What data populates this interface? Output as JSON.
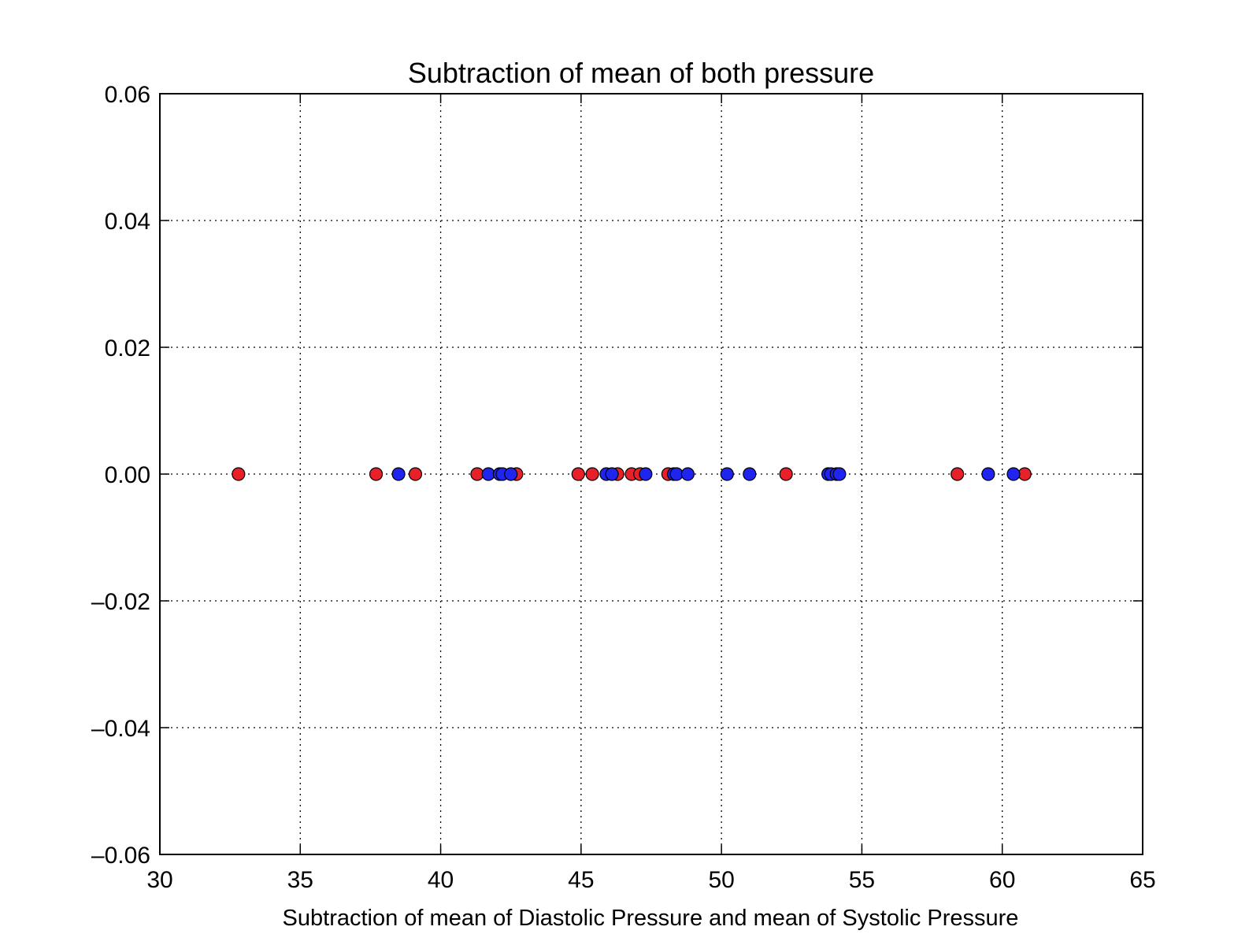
{
  "chart_data": {
    "type": "scatter",
    "title": "Subtraction of mean of both pressure",
    "xlabel": "Subtraction of mean of Diastolic Pressure and mean of Systolic Pressure",
    "ylabel": "",
    "xlim": [
      30,
      65
    ],
    "ylim": [
      -0.06,
      0.06
    ],
    "xticks": [
      30,
      35,
      40,
      45,
      50,
      55,
      60,
      65
    ],
    "xtick_labels": [
      "30",
      "35",
      "40",
      "45",
      "50",
      "55",
      "60",
      "65"
    ],
    "yticks": [
      0.06,
      0.04,
      0.02,
      0.0,
      -0.02,
      -0.04,
      -0.06
    ],
    "ytick_labels": [
      "0.06",
      "0.04",
      "0.02",
      "0.00",
      "–0.02",
      "–0.04",
      "–0.06"
    ],
    "grid": true,
    "legend": "none",
    "series": [
      {
        "color": "#e8202a",
        "x": [
          32.8,
          37.7,
          39.1,
          41.3,
          42.7,
          44.9,
          45.4,
          46.3,
          46.8,
          47.1,
          48.1,
          52.3,
          58.4,
          60.8
        ],
        "y": [
          0,
          0,
          0,
          0,
          0,
          0,
          0,
          0,
          0,
          0,
          0,
          0,
          0,
          0
        ]
      },
      {
        "color": "#1f24ee",
        "x": [
          38.5,
          41.7,
          42.1,
          42.2,
          42.5,
          45.9,
          46.1,
          47.3,
          48.3,
          48.4,
          48.8,
          50.2,
          51.0,
          53.8,
          53.9,
          54.1,
          54.2,
          59.5,
          60.4
        ],
        "y": [
          0,
          0,
          0,
          0,
          0,
          0,
          0,
          0,
          0,
          0,
          0,
          0,
          0,
          0,
          0,
          0,
          0,
          0,
          0
        ]
      }
    ]
  }
}
